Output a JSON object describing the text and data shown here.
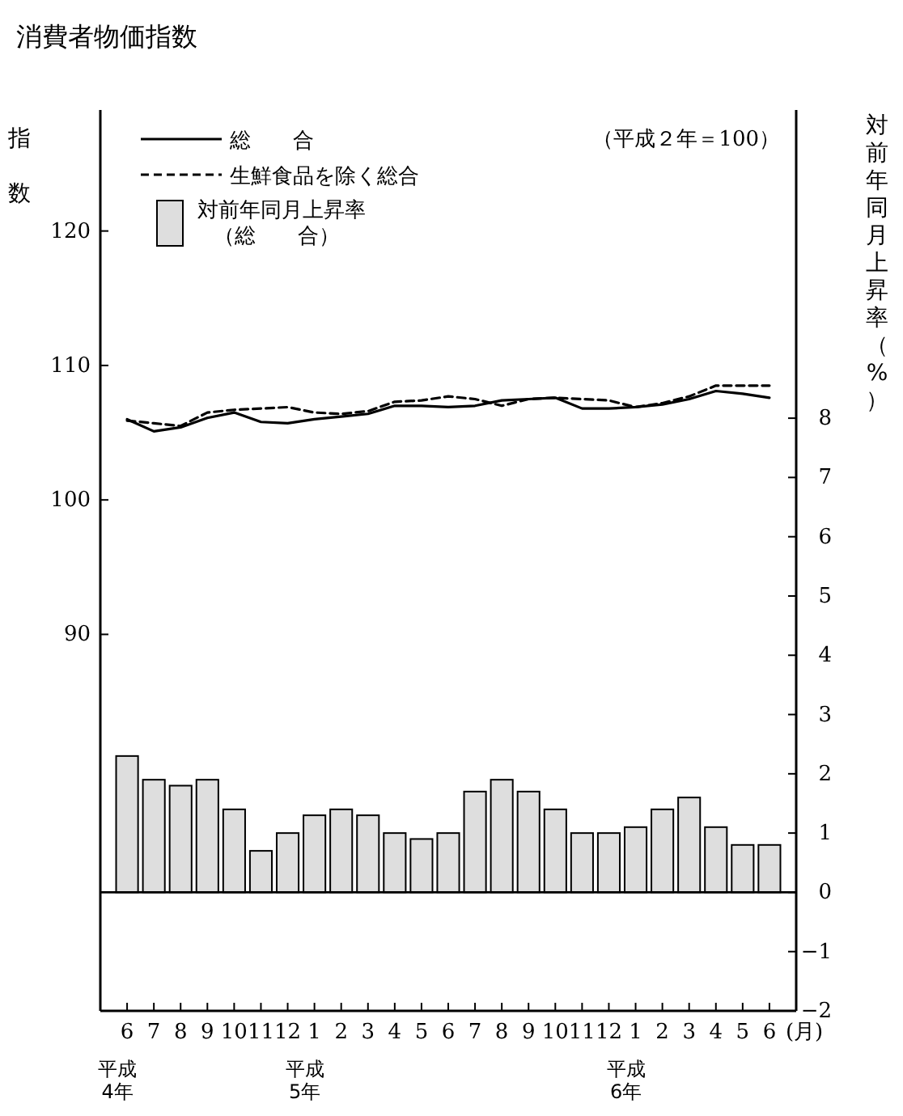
{
  "chart_data": {
    "type": "line",
    "title": "消費者物価指数",
    "ylabel": "指数",
    "y2label": "対前年同月上昇率（%）",
    "xlabel": "(月)",
    "annotations": [
      "（平成２年＝100）"
    ],
    "categories": [
      "6\n平成\n4年",
      "7",
      "8",
      "9",
      "10",
      "11",
      "12",
      "1\n平成\n5年",
      "2",
      "3",
      "4",
      "5",
      "6",
      "7",
      "8",
      "9",
      "10",
      "11",
      "12",
      "1\n平成\n6年",
      "2",
      "3",
      "4",
      "5",
      "6"
    ],
    "ylim": [
      62,
      129
    ],
    "yticks": [
      90,
      100,
      110,
      120
    ],
    "y2lim": [
      -2,
      13.2
    ],
    "y2ticks": [
      -2,
      -1,
      0,
      1,
      2,
      3,
      4,
      5,
      6,
      7,
      8
    ],
    "legend": "top left",
    "marker": "none",
    "ref_lines": [
      {
        "axis": "y2",
        "value": 0
      }
    ],
    "series": [
      {
        "name": "総　　合",
        "line_style": "solid",
        "color": "#000000",
        "values": [
          106.0,
          105.1,
          105.4,
          106.1,
          106.5,
          105.8,
          105.7,
          106.0,
          106.2,
          106.4,
          107.0,
          107.0,
          106.9,
          107.0,
          107.4,
          107.5,
          107.6,
          106.8,
          106.8,
          106.9,
          107.1,
          107.5,
          108.1,
          107.9,
          107.6
        ]
      },
      {
        "name": "生鮮食品を除く総合",
        "line_style": "dashed",
        "color": "#000000",
        "values": [
          105.9,
          105.7,
          105.5,
          106.5,
          106.7,
          106.8,
          106.9,
          106.5,
          106.4,
          106.6,
          107.3,
          107.4,
          107.7,
          107.5,
          107.0,
          107.5,
          107.6,
          107.5,
          107.4,
          106.9,
          107.2,
          107.7,
          108.5,
          108.5,
          108.5
        ]
      },
      {
        "name": "対前年同月上昇率（総　　合）",
        "type": "bar",
        "axis": "y2",
        "color": "#dedede",
        "values": [
          2.3,
          1.9,
          1.8,
          1.9,
          1.4,
          0.7,
          1.0,
          1.3,
          1.4,
          1.3,
          1.0,
          0.9,
          1.0,
          1.7,
          1.9,
          1.7,
          1.4,
          1.0,
          1.0,
          1.1,
          1.4,
          1.6,
          1.1,
          0.8,
          0.8
        ]
      }
    ]
  }
}
